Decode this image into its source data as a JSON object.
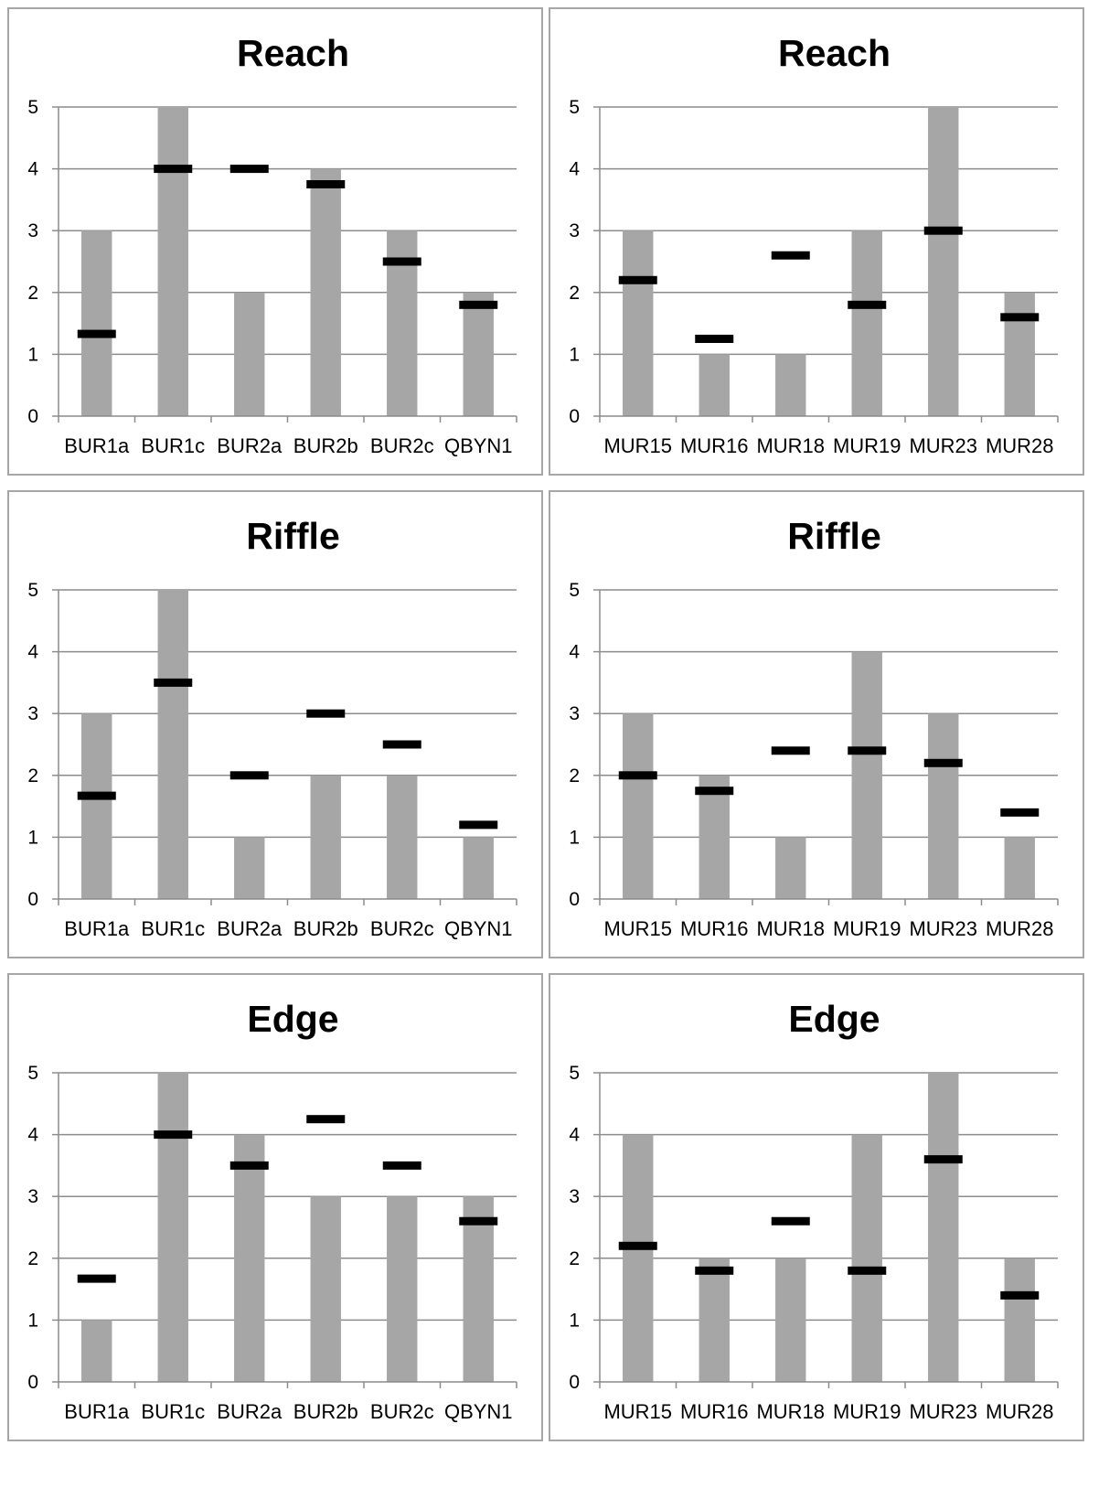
{
  "chart_data": [
    {
      "type": "bar",
      "title": "Reach",
      "categories": [
        "BUR1a",
        "BUR1c",
        "BUR2a",
        "BUR2b",
        "BUR2c",
        "QBYN1"
      ],
      "ylim": [
        0,
        5
      ],
      "yticks": [
        0,
        1,
        2,
        3,
        4,
        5
      ],
      "grid": true,
      "series": [
        {
          "values": [
            3,
            5,
            2,
            4,
            3,
            2
          ],
          "color": "#a6a6a6",
          "mark": "bar"
        },
        {
          "values": [
            1.33,
            4,
            4,
            3.75,
            2.5,
            1.8
          ],
          "color": "#000000",
          "mark": "dash"
        }
      ]
    },
    {
      "type": "bar",
      "title": "Reach",
      "categories": [
        "MUR15",
        "MUR16",
        "MUR18",
        "MUR19",
        "MUR23",
        "MUR28"
      ],
      "ylim": [
        0,
        5
      ],
      "yticks": [
        0,
        1,
        2,
        3,
        4,
        5
      ],
      "grid": true,
      "series": [
        {
          "values": [
            3,
            1,
            1,
            3,
            5,
            2
          ],
          "color": "#a6a6a6",
          "mark": "bar"
        },
        {
          "values": [
            2.2,
            1.25,
            2.6,
            1.8,
            3,
            1.6
          ],
          "color": "#000000",
          "mark": "dash"
        }
      ]
    },
    {
      "type": "bar",
      "title": "Riffle",
      "categories": [
        "BUR1a",
        "BUR1c",
        "BUR2a",
        "BUR2b",
        "BUR2c",
        "QBYN1"
      ],
      "ylim": [
        0,
        5
      ],
      "yticks": [
        0,
        1,
        2,
        3,
        4,
        5
      ],
      "grid": true,
      "series": [
        {
          "values": [
            3,
            5,
            1,
            2,
            2,
            1
          ],
          "color": "#a6a6a6",
          "mark": "bar"
        },
        {
          "values": [
            1.67,
            3.5,
            2,
            3,
            2.5,
            1.2
          ],
          "color": "#000000",
          "mark": "dash"
        }
      ]
    },
    {
      "type": "bar",
      "title": "Riffle",
      "categories": [
        "MUR15",
        "MUR16",
        "MUR18",
        "MUR19",
        "MUR23",
        "MUR28"
      ],
      "ylim": [
        0,
        5
      ],
      "yticks": [
        0,
        1,
        2,
        3,
        4,
        5
      ],
      "grid": true,
      "series": [
        {
          "values": [
            3,
            2,
            1,
            4,
            3,
            1
          ],
          "color": "#a6a6a6",
          "mark": "bar"
        },
        {
          "values": [
            2,
            1.75,
            2.4,
            2.4,
            2.2,
            1.4
          ],
          "color": "#000000",
          "mark": "dash"
        }
      ]
    },
    {
      "type": "bar",
      "title": "Edge",
      "categories": [
        "BUR1a",
        "BUR1c",
        "BUR2a",
        "BUR2b",
        "BUR2c",
        "QBYN1"
      ],
      "ylim": [
        0,
        5
      ],
      "yticks": [
        0,
        1,
        2,
        3,
        4,
        5
      ],
      "grid": true,
      "series": [
        {
          "values": [
            1,
            5,
            4,
            3,
            3,
            3
          ],
          "color": "#a6a6a6",
          "mark": "bar"
        },
        {
          "values": [
            1.67,
            4,
            3.5,
            4.25,
            3.5,
            2.6
          ],
          "color": "#000000",
          "mark": "dash"
        }
      ]
    },
    {
      "type": "bar",
      "title": "Edge",
      "categories": [
        "MUR15",
        "MUR16",
        "MUR18",
        "MUR19",
        "MUR23",
        "MUR28"
      ],
      "ylim": [
        0,
        5
      ],
      "yticks": [
        0,
        1,
        2,
        3,
        4,
        5
      ],
      "grid": true,
      "series": [
        {
          "values": [
            4,
            2,
            2,
            4,
            5,
            2
          ],
          "color": "#a6a6a6",
          "mark": "bar"
        },
        {
          "values": [
            2.2,
            1.8,
            2.6,
            1.8,
            3.6,
            1.4
          ],
          "color": "#000000",
          "mark": "dash"
        }
      ]
    }
  ]
}
